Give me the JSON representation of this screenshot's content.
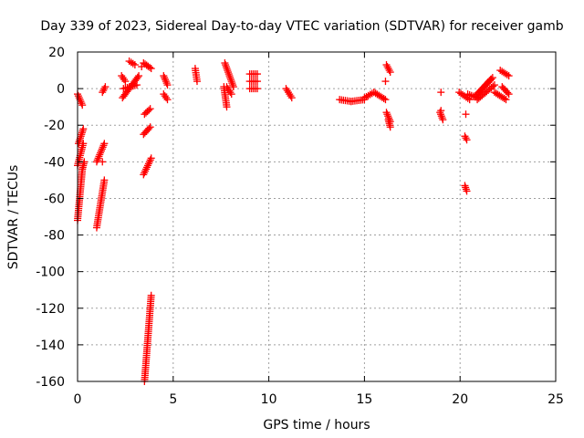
{
  "chart_data": {
    "type": "scatter",
    "title": "Day 339 of 2023, Sidereal Day-to-day VTEC variation (SDTVAR) for receiver gamb",
    "xlabel": "GPS time / hours",
    "ylabel": "SDTVAR / TECUs",
    "xlim": [
      0,
      25
    ],
    "ylim": [
      -160,
      20
    ],
    "x_ticks": [
      0,
      5,
      10,
      15,
      20,
      25
    ],
    "y_ticks": [
      20,
      0,
      -20,
      -40,
      -60,
      -80,
      -100,
      -120,
      -140,
      -160
    ],
    "grid": true,
    "marker": "+",
    "marker_color": "#ff0000",
    "segments": [
      {
        "x0": 0.0,
        "y0": -3,
        "x1": 0.25,
        "y1": -9
      },
      {
        "x0": 0.05,
        "y0": -30,
        "x1": 0.3,
        "y1": -22
      },
      {
        "x0": 0.0,
        "y0": -42,
        "x1": 0.3,
        "y1": -30
      },
      {
        "x0": 0.0,
        "y0": -72,
        "x1": 0.25,
        "y1": -44
      },
      {
        "x0": 0.25,
        "y0": -44,
        "x1": 0.35,
        "y1": -40
      },
      {
        "x0": 1.0,
        "y0": -40,
        "x1": 1.4,
        "y1": -30
      },
      {
        "x0": 1.0,
        "y0": -76,
        "x1": 1.4,
        "y1": -50
      },
      {
        "x0": 1.3,
        "y0": -2,
        "x1": 1.45,
        "y1": 1
      },
      {
        "x0": 2.3,
        "y0": 7,
        "x1": 2.5,
        "y1": 4
      },
      {
        "x0": 2.35,
        "y0": -5,
        "x1": 3.2,
        "y1": 7
      },
      {
        "x0": 2.4,
        "y0": 0,
        "x1": 3.1,
        "y1": 2
      },
      {
        "x0": 2.7,
        "y0": 15,
        "x1": 3.0,
        "y1": 13
      },
      {
        "x0": 3.45,
        "y0": -47,
        "x1": 3.85,
        "y1": -38
      },
      {
        "x0": 3.45,
        "y0": -25,
        "x1": 3.8,
        "y1": -21
      },
      {
        "x0": 3.5,
        "y0": -14,
        "x1": 3.8,
        "y1": -11
      },
      {
        "x0": 3.45,
        "y0": 14,
        "x1": 3.85,
        "y1": 11
      },
      {
        "x0": 3.5,
        "y0": -160,
        "x1": 3.85,
        "y1": -113
      },
      {
        "x0": 4.5,
        "y0": 7,
        "x1": 4.7,
        "y1": 2
      },
      {
        "x0": 4.5,
        "y0": -3,
        "x1": 4.7,
        "y1": -6
      },
      {
        "x0": 6.15,
        "y0": 11,
        "x1": 6.25,
        "y1": 4
      },
      {
        "x0": 7.7,
        "y0": 14,
        "x1": 8.15,
        "y1": 1
      },
      {
        "x0": 7.65,
        "y0": 1,
        "x1": 7.8,
        "y1": -10
      },
      {
        "x0": 7.8,
        "y0": 1,
        "x1": 8.05,
        "y1": -3
      },
      {
        "x0": 9.0,
        "y0": 8,
        "x1": 9.4,
        "y1": 8
      },
      {
        "x0": 9.0,
        "y0": 4,
        "x1": 9.4,
        "y1": 4
      },
      {
        "x0": 9.0,
        "y0": 0,
        "x1": 9.4,
        "y1": 0
      },
      {
        "x0": 10.9,
        "y0": 0,
        "x1": 11.2,
        "y1": -5
      },
      {
        "x0": 13.7,
        "y0": -6,
        "x1": 14.3,
        "y1": -7
      },
      {
        "x0": 14.3,
        "y0": -7,
        "x1": 15.0,
        "y1": -6
      },
      {
        "x0": 15.0,
        "y0": -5,
        "x1": 15.5,
        "y1": -2
      },
      {
        "x0": 15.5,
        "y0": -2,
        "x1": 16.1,
        "y1": -6
      },
      {
        "x0": 16.15,
        "y0": 13,
        "x1": 16.35,
        "y1": 9
      },
      {
        "x0": 16.15,
        "y0": -13,
        "x1": 16.35,
        "y1": -18
      },
      {
        "x0": 16.25,
        "y0": -17,
        "x1": 16.35,
        "y1": -21
      },
      {
        "x0": 18.95,
        "y0": -13,
        "x1": 19.1,
        "y1": -17
      },
      {
        "x0": 19.95,
        "y0": -2,
        "x1": 20.5,
        "y1": -6
      },
      {
        "x0": 20.25,
        "y0": -26,
        "x1": 20.35,
        "y1": -28
      },
      {
        "x0": 20.25,
        "y0": -53,
        "x1": 20.35,
        "y1": -56
      },
      {
        "x0": 20.4,
        "y0": -3,
        "x1": 20.9,
        "y1": -5
      },
      {
        "x0": 20.8,
        "y0": -4,
        "x1": 21.7,
        "y1": 6
      },
      {
        "x0": 20.9,
        "y0": -6,
        "x1": 21.8,
        "y1": 2
      },
      {
        "x0": 21.0,
        "y0": -2,
        "x1": 21.6,
        "y1": 5
      },
      {
        "x0": 21.8,
        "y0": -2,
        "x1": 22.4,
        "y1": -6
      },
      {
        "x0": 22.1,
        "y0": 10,
        "x1": 22.55,
        "y1": 7
      },
      {
        "x0": 22.2,
        "y0": 1,
        "x1": 22.55,
        "y1": -3
      }
    ],
    "isolated_points": [
      {
        "x": 19.0,
        "y": -2
      },
      {
        "x": 19.0,
        "y": -12
      },
      {
        "x": 20.3,
        "y": -14
      },
      {
        "x": 16.1,
        "y": 4
      },
      {
        "x": 3.35,
        "y": 12
      },
      {
        "x": 1.3,
        "y": -40
      }
    ]
  }
}
